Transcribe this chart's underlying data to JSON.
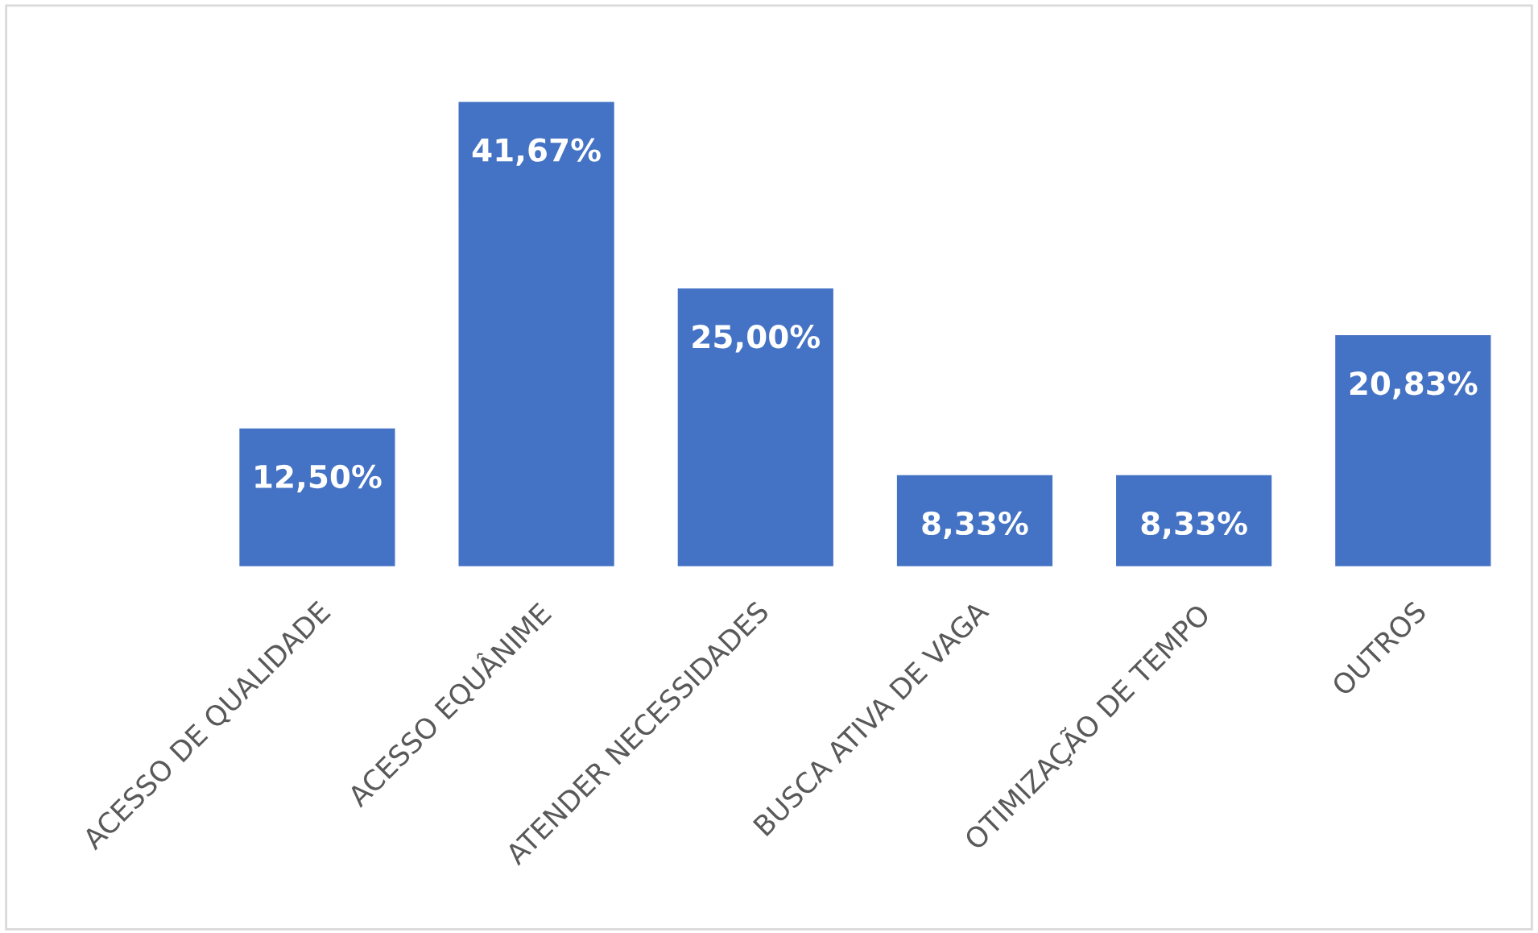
{
  "chart_data": {
    "type": "bar",
    "categories": [
      "ACESSO DE QUALIDADE",
      "ACESSO EQUÂNIME",
      "ATENDER NECESSIDADES",
      "BUSCA ATIVA DE VAGA",
      "OTIMIZAÇÃO DE TEMPO",
      "OUTROS"
    ],
    "values": [
      12.5,
      41.67,
      25.0,
      8.33,
      8.33,
      20.83
    ],
    "value_labels": [
      "12,50%",
      "41,67%",
      "25,00%",
      "8,33%",
      "8,33%",
      "20,83%"
    ],
    "color": "#4472c4",
    "grid": false,
    "legend": false
  }
}
